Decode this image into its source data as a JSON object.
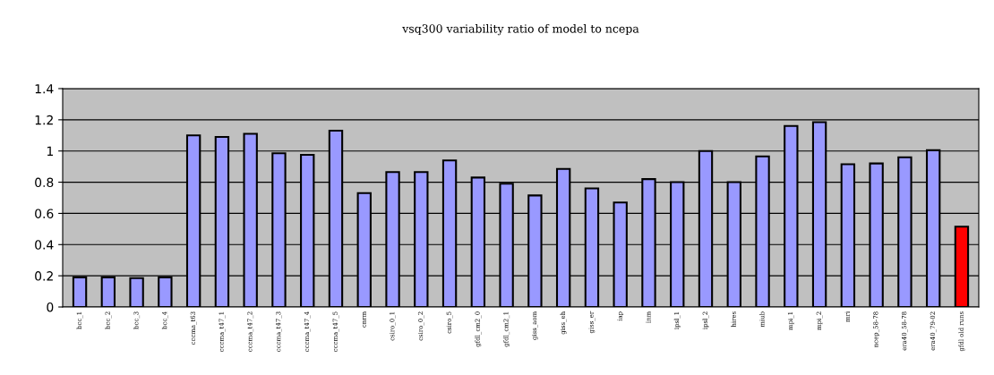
{
  "chart_data": {
    "type": "bar",
    "title": "vsq300 variability ratio of model to ncepa",
    "categories": [
      "bcc_1",
      "bcc_2",
      "bcc_3",
      "bcc_4",
      "cccma_t63",
      "cccma_t47_1",
      "cccma_t47_2",
      "cccma_t47_3",
      "cccma_t47_4",
      "cccma_t47_5",
      "cnrm",
      "csiro_0_1",
      "csiro_0_2",
      "csiro_5",
      "gfdl_cm2_0",
      "gfdl_cm2_1",
      "giss_aom",
      "giss_eh",
      "giss_er",
      "iap",
      "inm",
      "ipsl_1",
      "ipsl_2",
      "hires",
      "miub",
      "mpi_1",
      "mpi_2",
      "mri",
      "ncep_58-78",
      "era40_58-78",
      "era40_79-02",
      "gfdl old runs"
    ],
    "values": [
      0.19,
      0.19,
      0.185,
      0.19,
      1.1,
      1.09,
      1.11,
      0.985,
      0.975,
      1.13,
      0.73,
      0.865,
      0.865,
      0.94,
      0.83,
      0.79,
      0.715,
      0.885,
      0.76,
      0.67,
      0.82,
      0.8,
      1.0,
      0.8,
      0.965,
      1.16,
      1.185,
      0.915,
      0.92,
      0.96,
      1.005,
      0.515
    ],
    "colors": [
      "#9999ff",
      "#9999ff",
      "#9999ff",
      "#9999ff",
      "#9999ff",
      "#9999ff",
      "#9999ff",
      "#9999ff",
      "#9999ff",
      "#9999ff",
      "#9999ff",
      "#9999ff",
      "#9999ff",
      "#9999ff",
      "#9999ff",
      "#9999ff",
      "#9999ff",
      "#9999ff",
      "#9999ff",
      "#9999ff",
      "#9999ff",
      "#9999ff",
      "#9999ff",
      "#9999ff",
      "#9999ff",
      "#9999ff",
      "#9999ff",
      "#9999ff",
      "#9999ff",
      "#9999ff",
      "#9999ff",
      "#ff0000"
    ],
    "ylim": [
      0,
      1.4
    ],
    "yticks": [
      0,
      0.2,
      0.4,
      0.6,
      0.8,
      1,
      1.2,
      1.4
    ],
    "grid": "y",
    "legend": false
  }
}
